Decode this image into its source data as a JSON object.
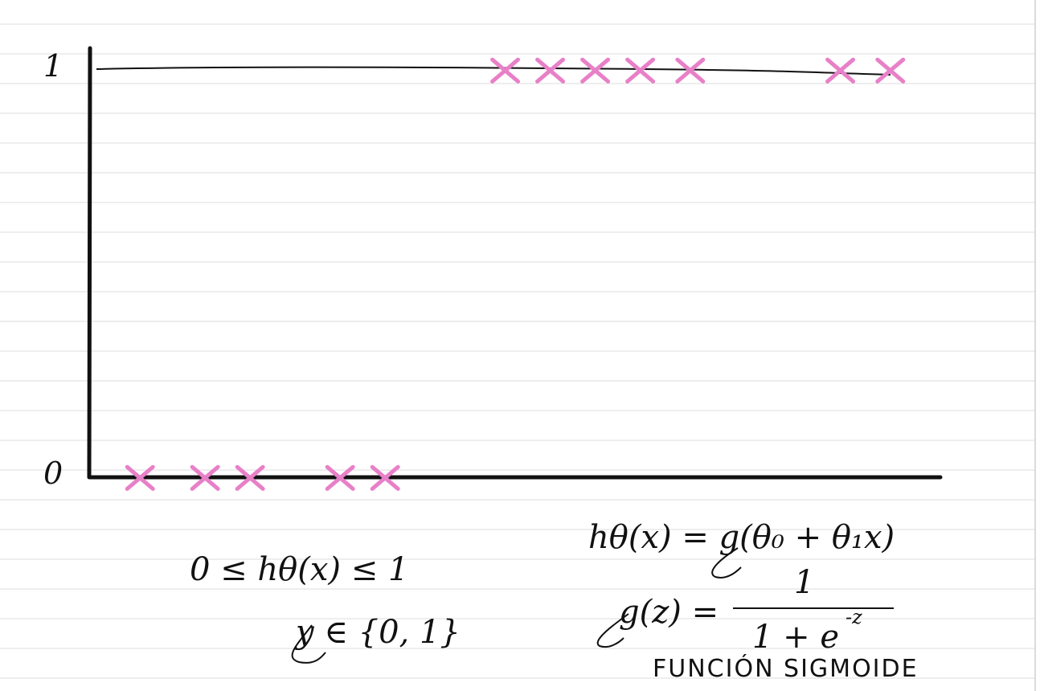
{
  "colors": {
    "paper": "#ffffff",
    "rule_line": "#dcdcdc",
    "ink": "#111111",
    "marker": "#e880c8"
  },
  "chart_data": {
    "type": "scatter",
    "ylim": [
      0,
      1
    ],
    "xlim": [
      0,
      17
    ],
    "yticks": [
      {
        "value": 0,
        "label": "0"
      },
      {
        "value": 1,
        "label": "1"
      }
    ],
    "threshold_line": {
      "y": 1
    },
    "marker": "x",
    "series": [
      {
        "points": [
          {
            "x": 1.0,
            "y": 0
          },
          {
            "x": 2.3,
            "y": 0
          },
          {
            "x": 3.2,
            "y": 0
          },
          {
            "x": 5.0,
            "y": 0
          },
          {
            "x": 5.9,
            "y": 0
          },
          {
            "x": 8.3,
            "y": 1
          },
          {
            "x": 9.2,
            "y": 1
          },
          {
            "x": 10.1,
            "y": 1
          },
          {
            "x": 11.0,
            "y": 1
          },
          {
            "x": 12.0,
            "y": 1
          },
          {
            "x": 15.0,
            "y": 1
          },
          {
            "x": 16.0,
            "y": 1
          }
        ]
      }
    ]
  },
  "annotations": {
    "hypothesis_bounds": "0 ≤ hθ(x) ≤ 1",
    "label_set": "y ∈ {0, 1}",
    "hypothesis_def": "hθ(x) = g(θ₀ + θ₁x)",
    "sigmoid_lhs": "g(z) =",
    "sigmoid_numerator": "1",
    "sigmoid_denominator": "1 + e",
    "sigmoid_exponent": "-z",
    "sigmoid_caption": "FUNCIÓN SIGMOIDE"
  }
}
